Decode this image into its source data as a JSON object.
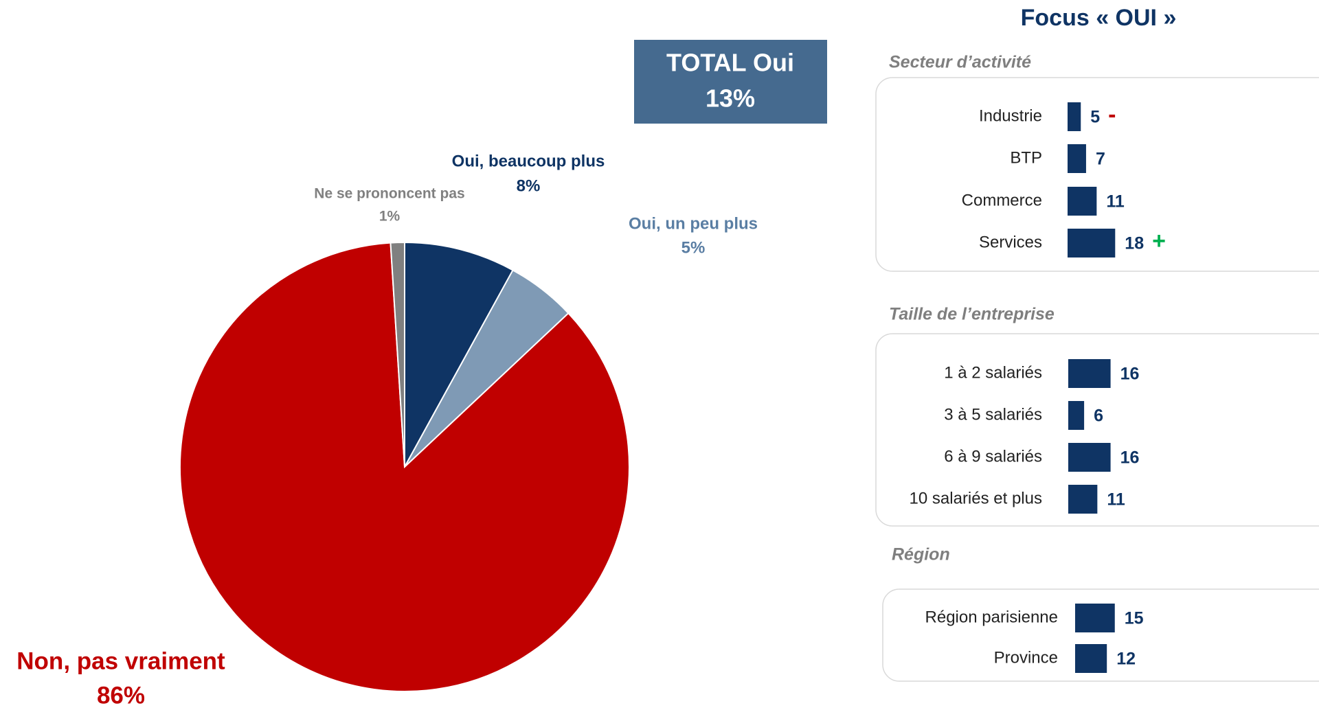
{
  "focus_title": "Focus « OUI »",
  "chart_data": [
    {
      "type": "pie",
      "categories": [
        "Oui, beaucoup plus",
        "Oui, un peu plus",
        "Non, pas vraiment",
        "Ne se prononcent pas"
      ],
      "values": [
        8,
        5,
        86,
        1
      ],
      "value_labels": [
        "8%",
        "5%",
        "86%",
        "1%"
      ],
      "colors": [
        "#0f3464",
        "#7f9ab5",
        "#c00000",
        "#808080"
      ],
      "label_colors": [
        "#0f3464",
        "#5a7ea3",
        "#c00000",
        "#808080"
      ],
      "annotations": [
        "TOTAL Oui",
        "13%"
      ]
    },
    {
      "type": "bar",
      "orientation": "horizontal",
      "title": "Secteur d’activité",
      "categories": [
        "Industrie",
        "BTP",
        "Commerce",
        "Services"
      ],
      "values": [
        5,
        7,
        11,
        18
      ],
      "color": "#0f3464",
      "significance": [
        "-",
        null,
        null,
        "+"
      ],
      "significance_colors": {
        "-": "#c00000",
        "+": "#00b050"
      }
    },
    {
      "type": "bar",
      "orientation": "horizontal",
      "title": "Taille de l’entreprise",
      "categories": [
        "1 à 2 salariés",
        "3 à 5 salariés",
        "6 à 9 salariés",
        "10 salariés et plus"
      ],
      "values": [
        16,
        6,
        16,
        11
      ],
      "color": "#0f3464"
    },
    {
      "type": "bar",
      "orientation": "horizontal",
      "title": "Région",
      "categories": [
        "Région parisienne",
        "Province"
      ],
      "values": [
        15,
        12
      ],
      "color": "#0f3464"
    }
  ]
}
